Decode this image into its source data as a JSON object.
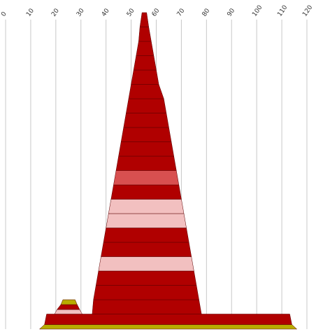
{
  "chart_data": {
    "type": "bar",
    "orientation": "horizontal-stacked-symmetric",
    "x_ticks": [
      0,
      10,
      20,
      30,
      40,
      50,
      60,
      70,
      80,
      90,
      100,
      110,
      120
    ],
    "xlim": [
      0,
      120
    ],
    "grid": true,
    "legend": "none",
    "colors": {
      "dark": "#b00000",
      "medium": "#d85050",
      "light": "#f2c0c0",
      "olive": "#b8ac00"
    },
    "towers": [
      {
        "name": "",
        "layers": [
          {
            "start": 13.5,
            "end": 116.0,
            "color": "olive"
          },
          {
            "start": 15.5,
            "end": 114.0,
            "color": "dark"
          }
        ]
      },
      {
        "name": "",
        "layers": [
          {
            "start": 19.5,
            "end": 30.5,
            "color": "light"
          },
          {
            "start": 20.5,
            "end": 29.5,
            "color": "dark"
          },
          {
            "start": 22.0,
            "end": 28.5,
            "color": "olive"
          }
        ]
      },
      {
        "name": "",
        "layers": [
          {
            "start": 34.5,
            "end": 78.0,
            "color": "dark"
          },
          {
            "start": 35.0,
            "end": 77.0,
            "color": "dark"
          },
          {
            "start": 36.0,
            "end": 76.0,
            "color": "dark"
          },
          {
            "start": 37.0,
            "end": 75.0,
            "color": "light"
          },
          {
            "start": 38.0,
            "end": 74.0,
            "color": "dark"
          },
          {
            "start": 39.0,
            "end": 73.0,
            "color": "dark"
          },
          {
            "start": 40.0,
            "end": 72.0,
            "color": "light"
          },
          {
            "start": 41.0,
            "end": 71.0,
            "color": "light"
          },
          {
            "start": 42.0,
            "end": 70.0,
            "color": "dark"
          },
          {
            "start": 43.0,
            "end": 69.0,
            "color": "medium"
          },
          {
            "start": 44.0,
            "end": 68.0,
            "color": "dark"
          },
          {
            "start": 45.0,
            "end": 67.0,
            "color": "dark"
          },
          {
            "start": 46.0,
            "end": 66.0,
            "color": "dark"
          },
          {
            "start": 47.0,
            "end": 65.0,
            "color": "dark"
          },
          {
            "start": 48.0,
            "end": 64.0,
            "color": "dark"
          },
          {
            "start": 49.0,
            "end": 63.0,
            "color": "dark"
          },
          {
            "start": 50.0,
            "end": 61.0,
            "color": "dark"
          },
          {
            "start": 51.0,
            "end": 60.0,
            "color": "dark"
          },
          {
            "start": 52.0,
            "end": 59.0,
            "color": "dark"
          },
          {
            "start": 53.0,
            "end": 58.0,
            "color": "dark"
          },
          {
            "start": 53.5,
            "end": 57.0,
            "color": "dark"
          }
        ]
      }
    ]
  }
}
